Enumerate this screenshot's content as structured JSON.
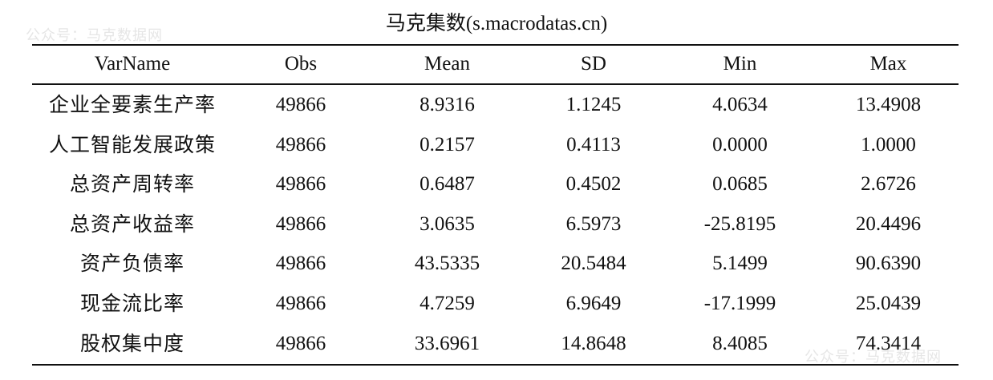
{
  "watermark": "公众号：马克数据网",
  "title": "马克集数(s.macrodatas.cn)",
  "columns": [
    "VarName",
    "Obs",
    "Mean",
    "SD",
    "Min",
    "Max"
  ],
  "rows": [
    [
      "企业全要素生产率",
      "49866",
      "8.9316",
      "1.1245",
      "4.0634",
      "13.4908"
    ],
    [
      "人工智能发展政策",
      "49866",
      "0.2157",
      "0.4113",
      "0.0000",
      "1.0000"
    ],
    [
      "总资产周转率",
      "49866",
      "0.6487",
      "0.4502",
      "0.0685",
      "2.6726"
    ],
    [
      "总资产收益率",
      "49866",
      "3.0635",
      "6.5973",
      "-25.8195",
      "20.4496"
    ],
    [
      "资产负债率",
      "49866",
      "43.5335",
      "20.5484",
      "5.1499",
      "90.6390"
    ],
    [
      "现金流比率",
      "49866",
      "4.7259",
      "6.9649",
      "-17.1999",
      "25.0439"
    ],
    [
      "股权集中度",
      "49866",
      "33.6961",
      "14.8648",
      "8.4085",
      "74.3414"
    ]
  ]
}
